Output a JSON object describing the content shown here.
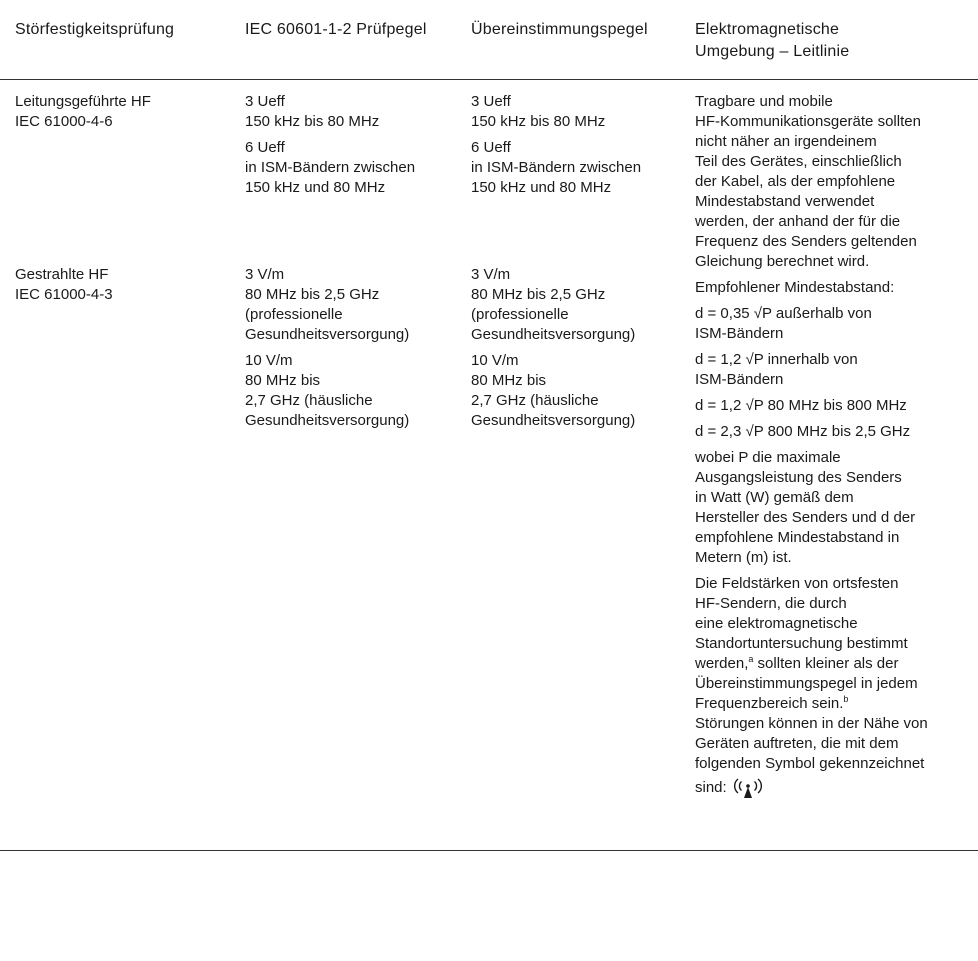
{
  "header": {
    "col1": "Störfestigkeitsprüfung",
    "col2": "IEC 60601-1-2 Prüfpegel",
    "col3": "Übereinstimmungspegel",
    "col4_line1": "Elektromagnetische",
    "col4_line2": "Umgebung – Leitlinie"
  },
  "row1": {
    "test_line1": "Leitungsgeführte HF",
    "test_line2": "IEC 61000-4-6",
    "level": {
      "a1": "3 Ueff",
      "a2": "150 kHz bis 80 MHz",
      "b1": "6 Ueff",
      "b2": "in ISM-Bändern zwischen",
      "b3": "150 kHz und 80 MHz"
    },
    "compliance": {
      "a1": "3 Ueff",
      "a2": "150 kHz bis 80 MHz",
      "b1": "6 Ueff",
      "b2": "in ISM-Bändern zwischen",
      "b3": "150 kHz und 80 MHz"
    }
  },
  "row2": {
    "test_line1": "Gestrahlte HF",
    "test_line2": "IEC 61000-4-3",
    "level": {
      "a1": "3 V/m",
      "a2": "80 MHz bis 2,5 GHz",
      "a3": "(professionelle",
      "a4": "Gesundheitsversorgung)",
      "b1": "10 V/m",
      "b2": "80 MHz bis",
      "b3": "2,7 GHz (häusliche",
      "b4": "Gesundheitsversorgung)"
    },
    "compliance": {
      "a1": "3 V/m",
      "a2": "80 MHz bis 2,5 GHz",
      "a3": "(professionelle",
      "a4": "Gesundheitsversorgung)",
      "b1": "10 V/m",
      "b2": "80 MHz bis",
      "b3": "2,7 GHz (häusliche",
      "b4": "Gesundheitsversorgung)"
    }
  },
  "guidance": {
    "p1": [
      "Tragbare und mobile",
      "HF-Kommunikationsgeräte sollten",
      "nicht näher an irgendeinem",
      "Teil des Gerätes, einschließlich",
      "der Kabel, als der empfohlene",
      "Mindestabstand verwendet",
      "werden, der anhand der für die",
      "Frequenz des Senders geltenden",
      "Gleichung berechnet wird."
    ],
    "p2": "Empfohlener Mindestabstand:",
    "p3": [
      "d = 0,35 √P außerhalb von",
      "ISM-Bändern"
    ],
    "p4": [
      "d = 1,2 √P innerhalb von",
      "ISM-Bändern"
    ],
    "p5": "d = 1,2 √P 80 MHz bis 800 MHz",
    "p6": "d = 2,3 √P 800 MHz bis 2,5 GHz",
    "p7": [
      "wobei P die maximale",
      "Ausgangsleistung des Senders",
      "in Watt (W) gemäß dem",
      "Hersteller des Senders und d der",
      "empfohlene Mindestabstand in",
      "Metern (m) ist."
    ],
    "p8": [
      "Die Feldstärken von ortsfesten",
      "HF-Sendern, die durch",
      "eine elektromagnetische",
      "Standortuntersuchung bestimmt"
    ],
    "p8_l5": "werden,",
    "p8_sup_a": "a",
    "p8_l5b": " sollten kleiner als der",
    "p8_l6": "Übereinstimmungspegel in jedem",
    "p8_l7": "Frequenzbereich sein.",
    "p8_sup_b": "b",
    "p8_rest": [
      "Störungen können in der Nähe von",
      "Geräten auftreten, die mit dem",
      "folgenden Symbol gekennzeichnet"
    ],
    "p8_last": "sind: ",
    "symbol_icon": "non-ionizing-radiation-icon"
  }
}
